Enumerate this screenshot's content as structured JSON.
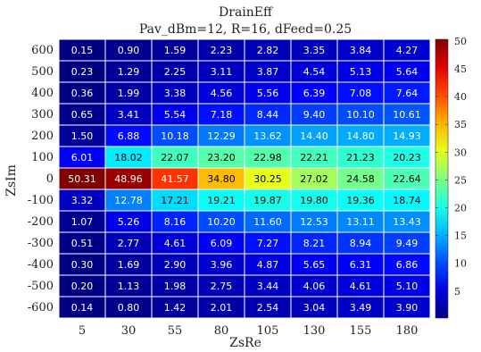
{
  "chart_data": {
    "type": "heatmap",
    "title": "DrainEff",
    "subtitle": "Pav_dBm=12, R=16, dFeed=0.25",
    "xlabel": "ZsRe",
    "ylabel": "ZsIm",
    "x": [
      5,
      30,
      55,
      80,
      105,
      130,
      155,
      180
    ],
    "y": [
      600,
      500,
      400,
      300,
      200,
      100,
      0,
      -100,
      -200,
      -300,
      -400,
      -500,
      -600
    ],
    "x_tick_labels": [
      "5",
      "30",
      "55",
      "80",
      "105",
      "130",
      "155",
      "180"
    ],
    "y_tick_labels": [
      "600",
      "500",
      "400",
      "300",
      "200",
      "100",
      "0",
      "-100",
      "-200",
      "-300",
      "-400",
      "-500",
      "-600"
    ],
    "cell_labels": [
      [
        "0.15",
        "0.90",
        "1.59",
        "2.23",
        "2.82",
        "3.35",
        "3.84",
        "4.27"
      ],
      [
        "0.23",
        "1.29",
        "2.25",
        "3.11",
        "3.87",
        "4.54",
        "5.13",
        "5.64"
      ],
      [
        "0.36",
        "1.99",
        "3.38",
        "4.56",
        "5.56",
        "6.39",
        "7.08",
        "7.64"
      ],
      [
        "0.65",
        "3.41",
        "5.54",
        "7.18",
        "8.44",
        "9.40",
        "10.10",
        "10.61"
      ],
      [
        "1.50",
        "6.88",
        "10.18",
        "12.29",
        "13.62",
        "14.40",
        "14.80",
        "14.93"
      ],
      [
        "6.01",
        "18.02",
        "22.07",
        "23.20",
        "22.98",
        "22.21",
        "21.23",
        "20.23"
      ],
      [
        "50.31",
        "48.96",
        "41.57",
        "34.80",
        "30.25",
        "27.02",
        "24.58",
        "22.64"
      ],
      [
        "3.32",
        "12.78",
        "17.21",
        "19.21",
        "19.87",
        "19.80",
        "19.36",
        "18.74"
      ],
      [
        "1.07",
        "5.26",
        "8.16",
        "10.20",
        "11.60",
        "12.53",
        "13.11",
        "13.43"
      ],
      [
        "0.51",
        "2.77",
        "4.61",
        "6.09",
        "7.27",
        "8.21",
        "8.94",
        "9.49"
      ],
      [
        "0.30",
        "1.69",
        "2.90",
        "3.96",
        "4.87",
        "5.65",
        "6.31",
        "6.86"
      ],
      [
        "0.20",
        "1.13",
        "1.98",
        "2.75",
        "3.44",
        "4.06",
        "4.61",
        "5.10"
      ],
      [
        "0.14",
        "0.80",
        "1.42",
        "2.01",
        "2.54",
        "3.04",
        "3.49",
        "3.90"
      ]
    ],
    "colorbar": {
      "ticks": [
        5,
        10,
        15,
        20,
        25,
        30,
        35,
        40,
        45,
        50
      ],
      "tick_labels": [
        "5",
        "10",
        "15",
        "20",
        "25",
        "30",
        "35",
        "40",
        "45",
        "50"
      ],
      "range": [
        0.14,
        50.31
      ],
      "colormap": "jet"
    },
    "grid": false,
    "colors": {
      "cell_border": "#ffffff",
      "text_dark_bg": "#ffffff",
      "text_light_bg": "#000000"
    }
  }
}
